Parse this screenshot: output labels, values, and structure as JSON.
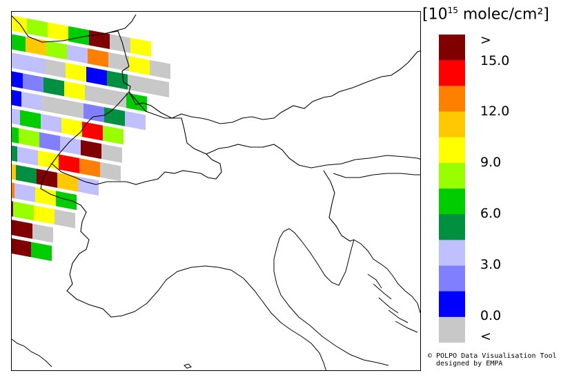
{
  "map": {
    "description_colors": {
      "c_lt": "#c8c8c8",
      "c_0": "#0000ff",
      "c_1": "#8080ff",
      "c_2": "#c0c0ff",
      "c_3": "#009040",
      "c_4": "#00cc00",
      "c_5": "#99ff00",
      "c_6": "#ffff00",
      "c_7": "#ffc800",
      "c_8": "#ff8000",
      "c_9": "#ff0000",
      "c_gt": "#800000"
    },
    "swath_rows": [
      [
        "c_6",
        "c_5",
        "c_6",
        "c_4",
        "c_gt",
        "c_lt",
        "c_6"
      ],
      [
        "c_4",
        "c_7",
        "c_5",
        "c_2",
        "c_8",
        "c_lt",
        "c_6",
        "c_lt"
      ],
      [
        "c_2",
        "c_2",
        "c_lt",
        "c_6",
        "c_0",
        "c_3",
        "c_lt",
        "c_lt"
      ],
      [
        "c_0",
        "c_1",
        "c_3",
        "c_6",
        "c_lt",
        "c_lt",
        "c_4"
      ],
      [
        "c_0",
        "c_2",
        "c_lt",
        "c_lt",
        "c_1",
        "c_3",
        "c_2"
      ],
      [
        "c_2",
        "c_4",
        "c_2",
        "c_6",
        "c_9",
        "c_5"
      ],
      [
        "c_4",
        "c_5",
        "c_1",
        "c_2",
        "c_gt",
        "c_lt"
      ],
      [
        "c_3",
        "c_2",
        "c_6",
        "c_9",
        "c_8",
        "c_lt"
      ],
      [
        "c_7",
        "c_3",
        "c_gt",
        "c_7",
        "c_2"
      ],
      [
        "c_8",
        "c_2",
        "c_6",
        "c_4"
      ],
      [
        "c_gt",
        "c_5",
        "c_6",
        "c_lt"
      ],
      [
        "c_gt",
        "c_gt",
        "c_lt"
      ],
      [
        "c_gt",
        "c_gt",
        "c_4"
      ]
    ]
  },
  "legend": {
    "unit_base": "10",
    "unit_exp": "15",
    "unit_rest": " molec/cm²",
    "unit_open": "[",
    "unit_close": "]",
    "colors": [
      "#800000",
      "#ff0000",
      "#ff8000",
      "#ffc800",
      "#ffff00",
      "#99ff00",
      "#00cc00",
      "#009040",
      "#c0c0ff",
      "#8080ff",
      "#0000ff",
      "#c8c8c8"
    ],
    "ticks": [
      ">",
      "15.0",
      "12.0",
      "9.0",
      "6.0",
      "3.0",
      "0.0",
      "<"
    ]
  },
  "credit": {
    "line1": "© POLPO Data Visualisation Tool",
    "line2": "designed by EMPA"
  }
}
